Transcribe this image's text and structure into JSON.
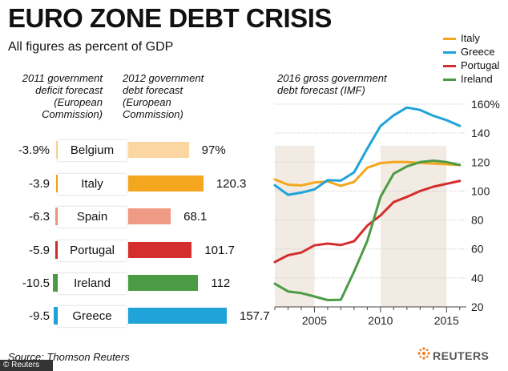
{
  "title": "EURO ZONE DEBT CRISIS",
  "subtitle": "All figures as percent of GDP",
  "deficit_header": [
    "2011 government",
    "deficit forecast",
    "(European",
    "Commission)"
  ],
  "debt_header": [
    "2012 government",
    "debt forecast",
    "(European",
    "Commission)"
  ],
  "line_header": [
    "2016 gross government",
    "debt forecast (IMF)"
  ],
  "source": "Source: Thomson Reuters",
  "credit": "© Reuters",
  "brand": "REUTERS",
  "colors": {
    "italy": "#f4a71e",
    "greece": "#1fa3d9",
    "portugal": "#d42e2e",
    "ireland": "#4c9c46",
    "belgium": "#fcd6a0",
    "spain": "#ef9a84",
    "shade": "#f2ebe4"
  },
  "chart_data": [
    {
      "type": "bar",
      "title": "2011 government deficit forecast (European Commission)",
      "categories": [
        "Belgium",
        "Italy",
        "Spain",
        "Portugal",
        "Ireland",
        "Greece"
      ],
      "values": [
        -3.9,
        -3.9,
        -6.3,
        -5.9,
        -10.5,
        -9.5
      ],
      "labels": [
        "-3.9%",
        "-3.9",
        "-6.3",
        "-5.9",
        "-10.5",
        "-9.5"
      ]
    },
    {
      "type": "bar",
      "title": "2012 government debt forecast (European Commission)",
      "categories": [
        "Belgium",
        "Italy",
        "Spain",
        "Portugal",
        "Ireland",
        "Greece"
      ],
      "values": [
        97,
        120.3,
        68.1,
        101.7,
        112,
        157.7
      ],
      "labels": [
        "97%",
        "120.3",
        "68.1",
        "101.7",
        "112",
        "157.7"
      ]
    },
    {
      "type": "line",
      "title": "2016 gross government debt forecast (IMF)",
      "x": [
        2002,
        2003,
        2004,
        2005,
        2006,
        2007,
        2008,
        2009,
        2010,
        2011,
        2012,
        2013,
        2014,
        2015,
        2016
      ],
      "xlim": [
        2002,
        2016.5
      ],
      "ylim": [
        20,
        160
      ],
      "xticks": [
        "2005",
        "2010",
        "2015"
      ],
      "xtick_values": [
        2005,
        2010,
        2015
      ],
      "yticks": [
        "20",
        "40",
        "60",
        "80",
        "100",
        "120",
        "140",
        "160%"
      ],
      "ytick_values": [
        20,
        40,
        60,
        80,
        100,
        120,
        140,
        160
      ],
      "shaded_ranges": [
        [
          2002,
          2005
        ],
        [
          2010,
          2015
        ]
      ],
      "series": [
        {
          "name": "Italy",
          "values": [
            108,
            104.4,
            103.9,
            105.9,
            106.6,
            103.6,
            106.3,
            116.1,
            119.3,
            120.1,
            120,
            119.5,
            119,
            118.5,
            118
          ]
        },
        {
          "name": "Greece",
          "values": [
            104,
            97.4,
            98.9,
            101.2,
            107.5,
            107.2,
            112.9,
            129.3,
            144.9,
            152.3,
            157.7,
            156,
            152,
            149,
            145
          ]
        },
        {
          "name": "Portugal",
          "values": [
            51,
            55.7,
            57.5,
            62.5,
            63.7,
            62.7,
            65.3,
            76.1,
            83.2,
            92.4,
            96,
            100,
            103,
            105,
            107
          ]
        },
        {
          "name": "Ireland",
          "values": [
            36,
            30.7,
            29.5,
            27.2,
            24.7,
            24.9,
            44.4,
            65.6,
            96,
            112,
            117,
            120,
            121,
            120,
            118
          ]
        }
      ]
    }
  ]
}
